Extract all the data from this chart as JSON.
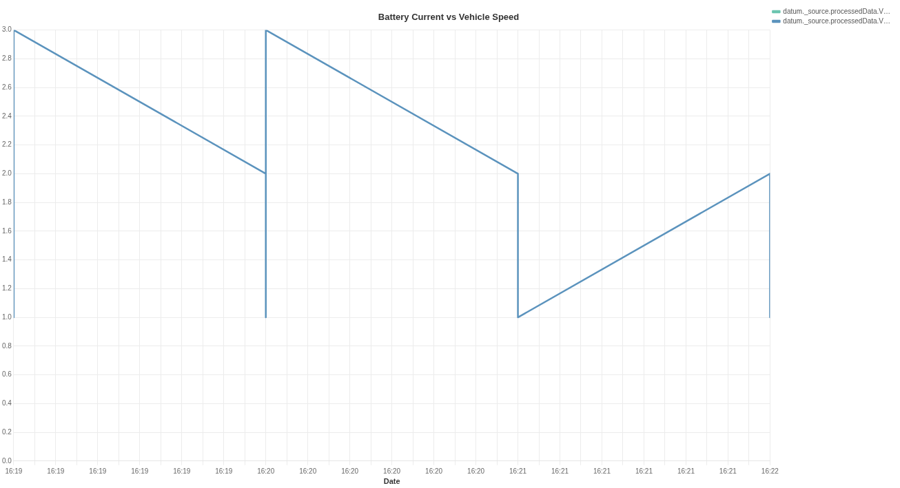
{
  "chart_data": {
    "type": "line",
    "title": "Battery Current vs Vehicle Speed",
    "xlabel": "Date",
    "x": [
      16.309722,
      16.309722,
      16.326389,
      16.326389,
      16.326389,
      16.343056,
      16.343056,
      16.359722,
      16.359722
    ],
    "series": [
      {
        "name": "datum._source.processedData.V…",
        "color": "#6cc5b0",
        "values": [
          null,
          null,
          null,
          null,
          null,
          null,
          null,
          null,
          null
        ]
      },
      {
        "name": "datum._source.processedData.V…",
        "color": "#5b93bd",
        "values": [
          1,
          3,
          2,
          1,
          3,
          2,
          1,
          2,
          1
        ]
      }
    ],
    "xlim": [
      16.309722,
      16.359722
    ],
    "xticks": [
      {
        "value": 16.309722,
        "label": "16:19"
      },
      {
        "value": 16.311111,
        "label": null
      },
      {
        "value": 16.3125,
        "label": "16:19"
      },
      {
        "value": 16.313889,
        "label": null
      },
      {
        "value": 16.315278,
        "label": "16:19"
      },
      {
        "value": 16.316667,
        "label": null
      },
      {
        "value": 16.318056,
        "label": "16:19"
      },
      {
        "value": 16.319444,
        "label": null
      },
      {
        "value": 16.320833,
        "label": "16:19"
      },
      {
        "value": 16.322222,
        "label": null
      },
      {
        "value": 16.323611,
        "label": "16:19"
      },
      {
        "value": 16.325,
        "label": null
      },
      {
        "value": 16.326389,
        "label": "16:20"
      },
      {
        "value": 16.327778,
        "label": null
      },
      {
        "value": 16.329167,
        "label": "16:20"
      },
      {
        "value": 16.330556,
        "label": null
      },
      {
        "value": 16.331944,
        "label": "16:20"
      },
      {
        "value": 16.333333,
        "label": null
      },
      {
        "value": 16.334722,
        "label": "16:20"
      },
      {
        "value": 16.336111,
        "label": null
      },
      {
        "value": 16.3375,
        "label": "16:20"
      },
      {
        "value": 16.338889,
        "label": null
      },
      {
        "value": 16.340278,
        "label": "16:20"
      },
      {
        "value": 16.341667,
        "label": null
      },
      {
        "value": 16.343056,
        "label": "16:21"
      },
      {
        "value": 16.344444,
        "label": null
      },
      {
        "value": 16.345833,
        "label": "16:21"
      },
      {
        "value": 16.347222,
        "label": null
      },
      {
        "value": 16.348611,
        "label": "16:21"
      },
      {
        "value": 16.35,
        "label": null
      },
      {
        "value": 16.351389,
        "label": "16:21"
      },
      {
        "value": 16.352778,
        "label": null
      },
      {
        "value": 16.354167,
        "label": "16:21"
      },
      {
        "value": 16.355556,
        "label": null
      },
      {
        "value": 16.356944,
        "label": "16:21"
      },
      {
        "value": 16.358333,
        "label": null
      },
      {
        "value": 16.359722,
        "label": "16:22"
      }
    ],
    "ylim": [
      0,
      3
    ],
    "yticks": [
      {
        "value": 0,
        "label": "0.0"
      },
      {
        "value": 0.2,
        "label": "0.2"
      },
      {
        "value": 0.4,
        "label": "0.4"
      },
      {
        "value": 0.6,
        "label": "0.6"
      },
      {
        "value": 0.8,
        "label": "0.8"
      },
      {
        "value": 1,
        "label": "1.0"
      },
      {
        "value": 1.2,
        "label": "1.2"
      },
      {
        "value": 1.4,
        "label": "1.4"
      },
      {
        "value": 1.6,
        "label": "1.6"
      },
      {
        "value": 1.8,
        "label": "1.8"
      },
      {
        "value": 2,
        "label": "2.0"
      },
      {
        "value": 2.2,
        "label": "2.2"
      },
      {
        "value": 2.4,
        "label": "2.4"
      },
      {
        "value": 2.6,
        "label": "2.6"
      },
      {
        "value": 2.8,
        "label": "2.8"
      },
      {
        "value": 3,
        "label": "3.0"
      }
    ],
    "grid": true,
    "legend": "top right",
    "marker": "none",
    "line_style": "solid"
  }
}
